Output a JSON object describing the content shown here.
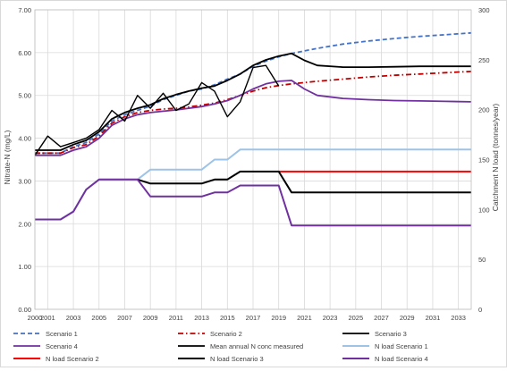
{
  "chart_data": {
    "type": "line",
    "title": "",
    "xlabel": "",
    "ylabel": "Nitrate-N (mg/L)",
    "y2label": "Catchment N load (tonnes/year)",
    "xlim": [
      2000,
      2034
    ],
    "ylim": [
      0,
      7
    ],
    "y2lim": [
      0,
      300
    ],
    "x_ticks": [
      2000,
      2001,
      2003,
      2005,
      2007,
      2009,
      2011,
      2013,
      2015,
      2017,
      2019,
      2021,
      2023,
      2025,
      2027,
      2029,
      2031,
      2033
    ],
    "y_ticks": [
      "0.00",
      "1.00",
      "2.00",
      "3.00",
      "4.00",
      "5.00",
      "6.00",
      "7.00"
    ],
    "y2_ticks": [
      "0",
      "50",
      "100",
      "150",
      "200",
      "250",
      "300"
    ],
    "grid": true,
    "legend_position": "bottom",
    "series": [
      {
        "name": "Scenario 1",
        "axis": "left",
        "color": "#4472C4",
        "dash": "dashed",
        "x": [
          2000,
          2001,
          2002,
          2003,
          2004,
          2005,
          2006,
          2007,
          2008,
          2009,
          2010,
          2011,
          2012,
          2013,
          2014,
          2015,
          2016,
          2017,
          2018,
          2019,
          2020,
          2022,
          2024,
          2026,
          2028,
          2030,
          2032,
          2034
        ],
        "values": [
          3.65,
          3.65,
          3.65,
          3.8,
          3.9,
          4.1,
          4.4,
          4.55,
          4.65,
          4.75,
          4.9,
          5.0,
          5.1,
          5.15,
          5.25,
          5.38,
          5.5,
          5.68,
          5.8,
          5.9,
          5.98,
          6.1,
          6.2,
          6.27,
          6.33,
          6.38,
          6.42,
          6.46
        ]
      },
      {
        "name": "Scenario 2",
        "axis": "left",
        "color": "#C00000",
        "dash": "dashdot",
        "x": [
          2000,
          2001,
          2002,
          2003,
          2004,
          2005,
          2006,
          2007,
          2008,
          2009,
          2010,
          2011,
          2012,
          2013,
          2014,
          2015,
          2016,
          2017,
          2018,
          2019,
          2020,
          2022,
          2024,
          2026,
          2028,
          2030,
          2032,
          2034
        ],
        "values": [
          3.65,
          3.65,
          3.65,
          3.78,
          3.85,
          4.05,
          4.35,
          4.5,
          4.6,
          4.65,
          4.68,
          4.7,
          4.73,
          4.77,
          4.82,
          4.9,
          5.0,
          5.1,
          5.18,
          5.23,
          5.27,
          5.33,
          5.38,
          5.43,
          5.47,
          5.5,
          5.53,
          5.56
        ]
      },
      {
        "name": "Scenario 3",
        "axis": "left",
        "color": "#000000",
        "dash": "solid",
        "x": [
          2000,
          2001,
          2002,
          2003,
          2004,
          2005,
          2006,
          2007,
          2008,
          2009,
          2010,
          2011,
          2012,
          2013,
          2014,
          2015,
          2016,
          2017,
          2018,
          2019,
          2020,
          2021,
          2022,
          2024,
          2026,
          2028,
          2030,
          2032,
          2034
        ],
        "values": [
          3.72,
          3.72,
          3.72,
          3.85,
          3.95,
          4.15,
          4.45,
          4.6,
          4.7,
          4.78,
          4.92,
          5.02,
          5.1,
          5.17,
          5.22,
          5.35,
          5.5,
          5.7,
          5.83,
          5.92,
          5.98,
          5.82,
          5.7,
          5.66,
          5.66,
          5.67,
          5.68,
          5.68,
          5.68
        ]
      },
      {
        "name": "Scenario 4",
        "axis": "left",
        "color": "#7030A0",
        "dash": "solid",
        "x": [
          2000,
          2001,
          2002,
          2003,
          2004,
          2005,
          2006,
          2007,
          2008,
          2009,
          2010,
          2011,
          2012,
          2013,
          2014,
          2015,
          2016,
          2017,
          2018,
          2019,
          2020,
          2021,
          2022,
          2024,
          2026,
          2028,
          2030,
          2032,
          2034
        ],
        "values": [
          3.6,
          3.6,
          3.6,
          3.72,
          3.8,
          4.0,
          4.3,
          4.45,
          4.55,
          4.6,
          4.63,
          4.66,
          4.7,
          4.74,
          4.8,
          4.88,
          5.0,
          5.15,
          5.27,
          5.33,
          5.35,
          5.15,
          5.0,
          4.93,
          4.9,
          4.88,
          4.87,
          4.86,
          4.85
        ]
      },
      {
        "name": "Mean annual N conc measured",
        "axis": "left",
        "color": "#000000",
        "dash": "solid",
        "x": [
          2000,
          2001,
          2002,
          2003,
          2004,
          2005,
          2006,
          2007,
          2008,
          2009,
          2010,
          2011,
          2012,
          2013,
          2014,
          2015,
          2016,
          2017,
          2018,
          2019
        ],
        "values": [
          3.6,
          4.05,
          3.8,
          3.9,
          4.0,
          4.2,
          4.65,
          4.4,
          5.0,
          4.7,
          5.05,
          4.65,
          4.8,
          5.3,
          5.1,
          4.5,
          4.85,
          5.65,
          5.7,
          5.22
        ]
      },
      {
        "name": "N load Scenario 1",
        "axis": "right",
        "color": "#9DC3E6",
        "dash": "solid",
        "x": [
          2000,
          2002,
          2003,
          2004,
          2005,
          2008,
          2009,
          2013,
          2014,
          2015,
          2016,
          2034
        ],
        "values": [
          90,
          90,
          98,
          120,
          130,
          130,
          140,
          140,
          150,
          150,
          160,
          160
        ]
      },
      {
        "name": "N load Scenario 2",
        "axis": "right",
        "color": "#FF0000",
        "dash": "solid",
        "x": [
          2019,
          2034
        ],
        "values": [
          138,
          138
        ]
      },
      {
        "name": "N load Scenario 3",
        "axis": "right",
        "color": "#000000",
        "dash": "solid",
        "x": [
          2008,
          2009,
          2013,
          2014,
          2015,
          2016,
          2019,
          2020,
          2034
        ],
        "values": [
          130,
          126,
          126,
          130,
          130,
          138,
          138,
          117,
          117
        ]
      },
      {
        "name": "N load Scenario 4",
        "axis": "right",
        "color": "#7030A0",
        "dash": "solid",
        "x": [
          2000,
          2002,
          2003,
          2004,
          2005,
          2008,
          2009,
          2013,
          2014,
          2015,
          2016,
          2019,
          2020,
          2034
        ],
        "values": [
          90,
          90,
          98,
          120,
          130,
          130,
          113,
          113,
          117,
          117,
          124,
          124,
          84,
          84
        ]
      }
    ]
  }
}
